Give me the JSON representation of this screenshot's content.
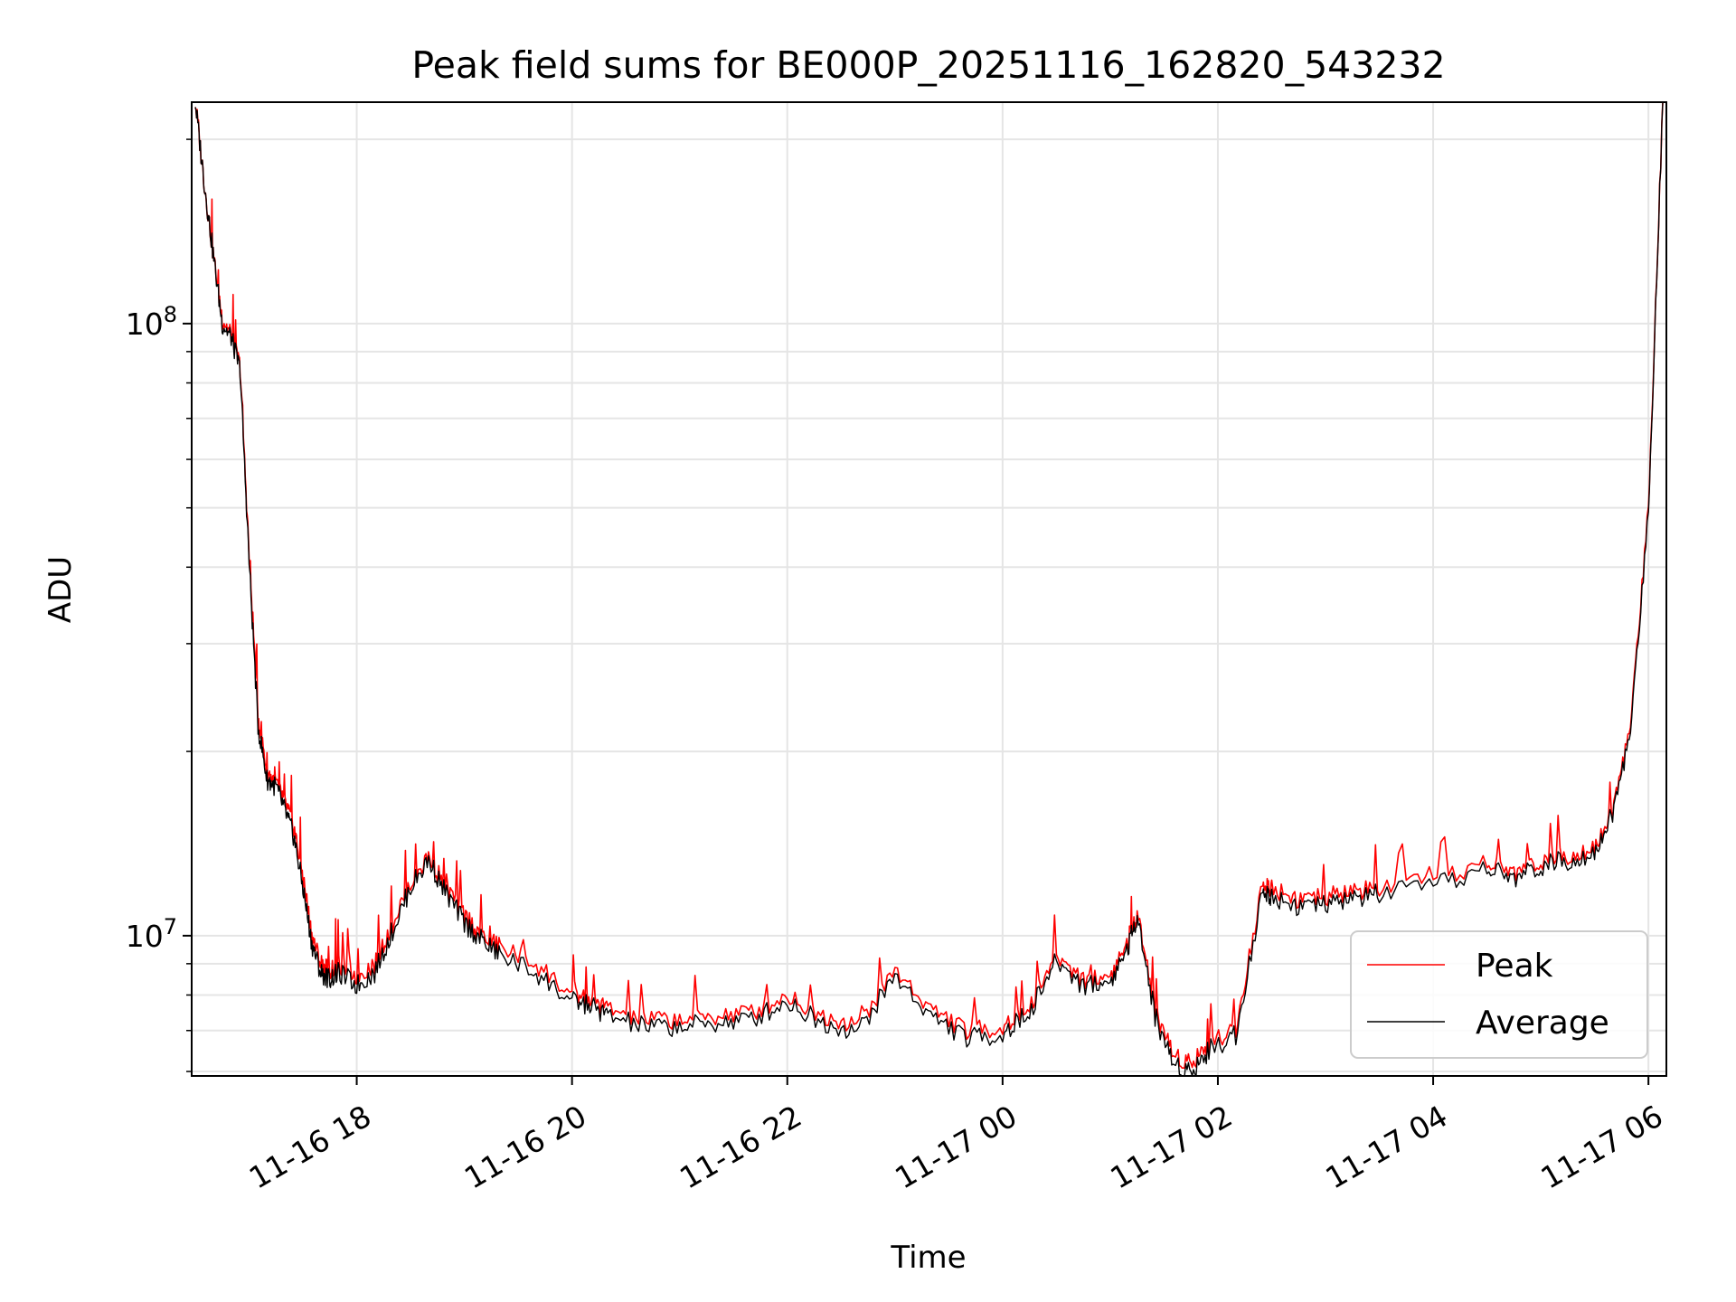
{
  "chart_data": {
    "type": "line",
    "title": "Peak field sums for BE000P_20251116_162820_543232",
    "xlabel": "Time",
    "ylabel": "ADU",
    "y_scale": "log",
    "ylim": [
      5900000,
      230000000
    ],
    "xlim": [
      "2025-11-16 16:28",
      "2025-11-17 06:10"
    ],
    "grid": true,
    "legend_position": "lower-right",
    "x_tick_labels": [
      "11-16 18",
      "11-16 20",
      "11-16 22",
      "11-17 00",
      "11-17 02",
      "11-17 04",
      "11-17 06"
    ],
    "x_ticks": [
      "2025-11-16 18:00",
      "2025-11-16 20:00",
      "2025-11-16 22:00",
      "2025-11-17 00:00",
      "2025-11-17 02:00",
      "2025-11-17 04:00",
      "2025-11-17 06:00"
    ],
    "y_tick_labels": [
      {
        "value": 10000000,
        "base": "10",
        "exp": "7"
      },
      {
        "value": 100000000,
        "base": "10",
        "exp": "8"
      }
    ],
    "series": [
      {
        "name": "Peak",
        "color": "#ff0000",
        "note_spikes": true,
        "x": [
          "2025-11-16 16:30",
          "2025-11-16 16:35",
          "2025-11-16 16:40",
          "2025-11-16 16:45",
          "2025-11-16 16:50",
          "2025-11-16 16:55",
          "2025-11-16 17:00",
          "2025-11-16 17:05",
          "2025-11-16 17:10",
          "2025-11-16 17:15",
          "2025-11-16 17:20",
          "2025-11-16 17:25",
          "2025-11-16 17:30",
          "2025-11-16 17:35",
          "2025-11-16 17:40",
          "2025-11-16 17:45",
          "2025-11-16 17:50",
          "2025-11-16 18:00",
          "2025-11-16 18:10",
          "2025-11-16 18:20",
          "2025-11-16 18:30",
          "2025-11-16 18:40",
          "2025-11-16 18:50",
          "2025-11-16 19:00",
          "2025-11-16 19:10",
          "2025-11-16 19:20",
          "2025-11-16 19:40",
          "2025-11-16 20:00",
          "2025-11-16 20:10",
          "2025-11-16 20:20",
          "2025-11-16 20:40",
          "2025-11-16 21:00",
          "2025-11-16 21:20",
          "2025-11-16 21:40",
          "2025-11-16 22:00",
          "2025-11-16 22:20",
          "2025-11-16 22:40",
          "2025-11-16 23:00",
          "2025-11-16 23:20",
          "2025-11-16 23:40",
          "2025-11-17 00:00",
          "2025-11-17 00:15",
          "2025-11-17 00:30",
          "2025-11-17 00:45",
          "2025-11-17 01:00",
          "2025-11-17 01:10",
          "2025-11-17 01:15",
          "2025-11-17 01:25",
          "2025-11-17 01:35",
          "2025-11-17 01:45",
          "2025-11-17 01:55",
          "2025-11-17 02:10",
          "2025-11-17 02:25",
          "2025-11-17 02:30",
          "2025-11-17 02:45",
          "2025-11-17 03:00",
          "2025-11-17 03:15",
          "2025-11-17 03:30",
          "2025-11-17 04:00",
          "2025-11-17 04:30",
          "2025-11-17 04:45",
          "2025-11-17 05:00",
          "2025-11-17 05:15",
          "2025-11-17 05:30",
          "2025-11-17 05:40",
          "2025-11-17 05:50",
          "2025-11-17 06:00",
          "2025-11-17 06:08"
        ],
        "values": [
          230000000,
          170000000,
          130000000,
          102000000,
          96000000,
          85000000,
          42000000,
          23000000,
          18500000,
          17800000,
          16500000,
          15000000,
          12500000,
          10000000,
          9000000,
          8800000,
          9000000,
          8600000,
          9000000,
          10500000,
          12200000,
          13500000,
          12000000,
          10800000,
          10000000,
          9600000,
          9000000,
          8000000,
          7900000,
          7600000,
          7300000,
          7300000,
          7400000,
          7500000,
          8000000,
          7400000,
          7200000,
          8800000,
          7600000,
          7000000,
          7100000,
          7700000,
          9300000,
          8500000,
          8600000,
          9800000,
          11000000,
          7600000,
          6400000,
          6200000,
          6700000,
          7100000,
          12100000,
          12000000,
          11500000,
          11500000,
          11800000,
          12000000,
          12300000,
          13200000,
          12700000,
          13300000,
          13600000,
          14000000,
          16000000,
          22000000,
          50000000,
          230000000
        ]
      },
      {
        "name": "Average",
        "color": "#000000",
        "x": [
          "2025-11-16 16:30",
          "2025-11-16 16:35",
          "2025-11-16 16:40",
          "2025-11-16 16:45",
          "2025-11-16 16:50",
          "2025-11-16 16:55",
          "2025-11-16 17:00",
          "2025-11-16 17:05",
          "2025-11-16 17:10",
          "2025-11-16 17:15",
          "2025-11-16 17:20",
          "2025-11-16 17:25",
          "2025-11-16 17:30",
          "2025-11-16 17:35",
          "2025-11-16 17:40",
          "2025-11-16 17:45",
          "2025-11-16 17:50",
          "2025-11-16 18:00",
          "2025-11-16 18:10",
          "2025-11-16 18:20",
          "2025-11-16 18:30",
          "2025-11-16 18:40",
          "2025-11-16 18:50",
          "2025-11-16 19:00",
          "2025-11-16 19:10",
          "2025-11-16 19:20",
          "2025-11-16 19:40",
          "2025-11-16 20:00",
          "2025-11-16 20:10",
          "2025-11-16 20:20",
          "2025-11-16 20:40",
          "2025-11-16 21:00",
          "2025-11-16 21:20",
          "2025-11-16 21:40",
          "2025-11-16 22:00",
          "2025-11-16 22:20",
          "2025-11-16 22:40",
          "2025-11-16 23:00",
          "2025-11-16 23:20",
          "2025-11-16 23:40",
          "2025-11-17 00:00",
          "2025-11-17 00:15",
          "2025-11-17 00:30",
          "2025-11-17 00:45",
          "2025-11-17 01:00",
          "2025-11-17 01:10",
          "2025-11-17 01:15",
          "2025-11-17 01:25",
          "2025-11-17 01:35",
          "2025-11-17 01:45",
          "2025-11-17 01:55",
          "2025-11-17 02:10",
          "2025-11-17 02:25",
          "2025-11-17 02:30",
          "2025-11-17 02:45",
          "2025-11-17 03:00",
          "2025-11-17 03:15",
          "2025-11-17 03:30",
          "2025-11-17 04:00",
          "2025-11-17 04:30",
          "2025-11-17 04:45",
          "2025-11-17 05:00",
          "2025-11-17 05:15",
          "2025-11-17 05:30",
          "2025-11-17 05:40",
          "2025-11-17 05:50",
          "2025-11-17 06:00",
          "2025-11-17 06:08"
        ],
        "values": [
          230000000,
          170000000,
          130000000,
          100000000,
          95000000,
          84000000,
          41000000,
          22000000,
          18000000,
          17500000,
          16000000,
          14500000,
          12000000,
          9700000,
          8700000,
          8500000,
          8700000,
          8300000,
          8700000,
          10200000,
          12000000,
          13300000,
          11700000,
          10500000,
          9800000,
          9300000,
          8700000,
          7800000,
          7700000,
          7400000,
          7100000,
          7100000,
          7200000,
          7300000,
          7800000,
          7200000,
          7000000,
          8600000,
          7400000,
          6800000,
          6900000,
          7500000,
          9100000,
          8300000,
          8400000,
          9600000,
          10800000,
          7400000,
          6200000,
          6000000,
          6500000,
          6900000,
          11800000,
          11600000,
          11200000,
          11200000,
          11500000,
          11700000,
          12000000,
          12900000,
          12400000,
          13000000,
          13300000,
          13700000,
          15800000,
          21500000,
          49000000,
          230000000
        ]
      }
    ]
  }
}
